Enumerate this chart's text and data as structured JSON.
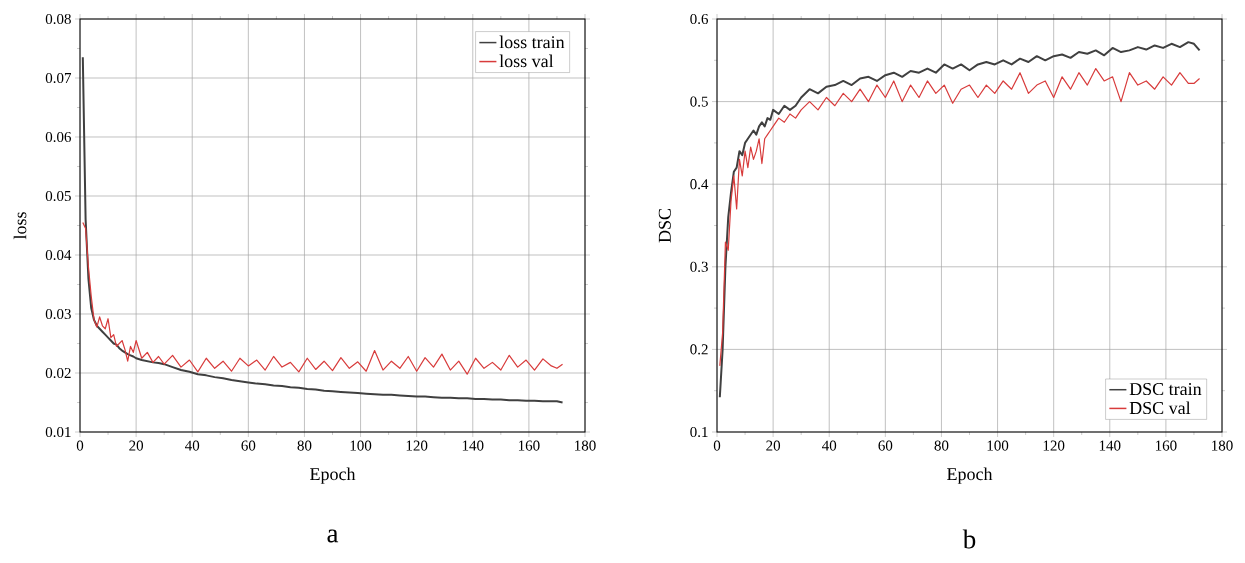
{
  "chart_data": [
    {
      "type": "line",
      "title": "a",
      "xlabel": "Epoch",
      "ylabel": "loss",
      "grid": true,
      "legend": "top right",
      "x": [
        1,
        2,
        3,
        4,
        5,
        6,
        7,
        8,
        9,
        10,
        11,
        12,
        13,
        14,
        15,
        16,
        17,
        18,
        19,
        20,
        22,
        24,
        26,
        28,
        30,
        33,
        36,
        39,
        42,
        45,
        48,
        51,
        54,
        57,
        60,
        63,
        66,
        69,
        72,
        75,
        78,
        81,
        84,
        87,
        90,
        93,
        96,
        99,
        102,
        105,
        108,
        111,
        114,
        117,
        120,
        123,
        126,
        129,
        132,
        135,
        138,
        141,
        144,
        147,
        150,
        153,
        156,
        159,
        162,
        165,
        168,
        170,
        172
      ],
      "series": [
        {
          "name": "loss train",
          "color": "#404040",
          "values": [
            0.0735,
            0.046,
            0.036,
            0.031,
            0.029,
            0.028,
            0.0275,
            0.027,
            0.0265,
            0.026,
            0.0255,
            0.025,
            0.0248,
            0.0242,
            0.0238,
            0.0235,
            0.0232,
            0.023,
            0.0228,
            0.0225,
            0.0222,
            0.022,
            0.0218,
            0.0217,
            0.0215,
            0.021,
            0.0205,
            0.0202,
            0.0198,
            0.0196,
            0.0193,
            0.0191,
            0.0188,
            0.0186,
            0.0184,
            0.0182,
            0.0181,
            0.0179,
            0.0178,
            0.0176,
            0.0175,
            0.0173,
            0.0172,
            0.017,
            0.0169,
            0.0168,
            0.0167,
            0.0166,
            0.0165,
            0.0164,
            0.0163,
            0.0163,
            0.0162,
            0.0161,
            0.016,
            0.016,
            0.0159,
            0.0158,
            0.0158,
            0.0157,
            0.0157,
            0.0156,
            0.0156,
            0.0155,
            0.0155,
            0.0154,
            0.0154,
            0.0153,
            0.0153,
            0.0152,
            0.0152,
            0.0152,
            0.015
          ]
        },
        {
          "name": "loss val",
          "color": "#d83b3b",
          "values": [
            0.0455,
            0.0445,
            0.038,
            0.033,
            0.029,
            0.0278,
            0.0295,
            0.028,
            0.0275,
            0.0292,
            0.026,
            0.0265,
            0.0245,
            0.025,
            0.0255,
            0.024,
            0.022,
            0.0245,
            0.0235,
            0.0255,
            0.0225,
            0.0235,
            0.0218,
            0.0228,
            0.0215,
            0.023,
            0.021,
            0.0222,
            0.0202,
            0.0225,
            0.0208,
            0.022,
            0.0203,
            0.0225,
            0.0212,
            0.0222,
            0.0205,
            0.0228,
            0.021,
            0.0218,
            0.0202,
            0.0225,
            0.0206,
            0.022,
            0.0204,
            0.0226,
            0.0208,
            0.0219,
            0.0203,
            0.0238,
            0.0205,
            0.022,
            0.0208,
            0.0228,
            0.0203,
            0.0226,
            0.021,
            0.0232,
            0.0205,
            0.022,
            0.0198,
            0.0225,
            0.0208,
            0.0218,
            0.0205,
            0.023,
            0.021,
            0.0222,
            0.0205,
            0.0224,
            0.0212,
            0.0208,
            0.0215
          ]
        }
      ],
      "xlim": [
        0,
        180
      ],
      "ylim": [
        0.01,
        0.08
      ],
      "xticks": [
        0,
        {
          "value": 10,
          "label": null
        },
        20,
        {
          "value": 30,
          "label": null
        },
        40,
        {
          "value": 50,
          "label": null
        },
        60,
        {
          "value": 70,
          "label": null
        },
        80,
        {
          "value": 90,
          "label": null
        },
        100,
        {
          "value": 110,
          "label": null
        },
        120,
        {
          "value": 130,
          "label": null
        },
        140,
        {
          "value": 150,
          "label": null
        },
        160,
        {
          "value": 170,
          "label": null
        },
        180
      ],
      "yticks": [
        0.01,
        {
          "value": 0.015,
          "label": null
        },
        0.02,
        {
          "value": 0.025,
          "label": null
        },
        0.03,
        {
          "value": 0.035,
          "label": null
        },
        0.04,
        {
          "value": 0.045,
          "label": null
        },
        0.05,
        {
          "value": 0.055,
          "label": null
        },
        0.06,
        {
          "value": 0.065,
          "label": null
        },
        0.07,
        {
          "value": 0.075,
          "label": null
        },
        0.08
      ]
    },
    {
      "type": "line",
      "title": "b",
      "xlabel": "Epoch",
      "ylabel": "DSC",
      "grid": true,
      "legend": "bottom right",
      "x": [
        1,
        2,
        3,
        4,
        5,
        6,
        7,
        8,
        9,
        10,
        11,
        12,
        13,
        14,
        15,
        16,
        17,
        18,
        19,
        20,
        22,
        24,
        26,
        28,
        30,
        33,
        36,
        39,
        42,
        45,
        48,
        51,
        54,
        57,
        60,
        63,
        66,
        69,
        72,
        75,
        78,
        81,
        84,
        87,
        90,
        93,
        96,
        99,
        102,
        105,
        108,
        111,
        114,
        117,
        120,
        123,
        126,
        129,
        132,
        135,
        138,
        141,
        144,
        147,
        150,
        153,
        156,
        159,
        162,
        165,
        168,
        170,
        172
      ],
      "series": [
        {
          "name": "DSC train",
          "color": "#404040",
          "values": [
            0.142,
            0.2,
            0.3,
            0.36,
            0.39,
            0.415,
            0.42,
            0.44,
            0.435,
            0.45,
            0.455,
            0.46,
            0.465,
            0.46,
            0.47,
            0.475,
            0.47,
            0.48,
            0.478,
            0.49,
            0.485,
            0.495,
            0.49,
            0.495,
            0.505,
            0.515,
            0.51,
            0.518,
            0.52,
            0.525,
            0.52,
            0.528,
            0.53,
            0.525,
            0.532,
            0.535,
            0.53,
            0.537,
            0.535,
            0.54,
            0.535,
            0.545,
            0.54,
            0.545,
            0.538,
            0.545,
            0.548,
            0.545,
            0.55,
            0.545,
            0.552,
            0.548,
            0.555,
            0.55,
            0.555,
            0.557,
            0.553,
            0.56,
            0.558,
            0.562,
            0.556,
            0.565,
            0.56,
            0.562,
            0.566,
            0.563,
            0.568,
            0.565,
            0.57,
            0.566,
            0.572,
            0.57,
            0.562
          ]
        },
        {
          "name": "DSC val",
          "color": "#d83b3b",
          "values": [
            0.18,
            0.22,
            0.33,
            0.32,
            0.38,
            0.41,
            0.37,
            0.43,
            0.41,
            0.44,
            0.42,
            0.445,
            0.43,
            0.44,
            0.455,
            0.425,
            0.455,
            0.46,
            0.465,
            0.47,
            0.48,
            0.475,
            0.485,
            0.48,
            0.49,
            0.5,
            0.49,
            0.505,
            0.495,
            0.51,
            0.5,
            0.515,
            0.5,
            0.52,
            0.505,
            0.525,
            0.5,
            0.52,
            0.505,
            0.525,
            0.51,
            0.52,
            0.498,
            0.515,
            0.52,
            0.505,
            0.52,
            0.51,
            0.525,
            0.515,
            0.535,
            0.51,
            0.52,
            0.525,
            0.505,
            0.53,
            0.515,
            0.535,
            0.52,
            0.54,
            0.525,
            0.53,
            0.5,
            0.535,
            0.52,
            0.525,
            0.515,
            0.53,
            0.52,
            0.535,
            0.522,
            0.522,
            0.528
          ]
        }
      ],
      "xlim": [
        0,
        180
      ],
      "ylim": [
        0.1,
        0.6
      ],
      "xticks": [
        0,
        {
          "value": 10,
          "label": null
        },
        20,
        {
          "value": 30,
          "label": null
        },
        40,
        {
          "value": 50,
          "label": null
        },
        60,
        {
          "value": 70,
          "label": null
        },
        80,
        {
          "value": 90,
          "label": null
        },
        100,
        {
          "value": 110,
          "label": null
        },
        120,
        {
          "value": 130,
          "label": null
        },
        140,
        {
          "value": 150,
          "label": null
        },
        160,
        {
          "value": 170,
          "label": null
        },
        180
      ],
      "yticks": [
        0.1,
        {
          "value": 0.15,
          "label": null
        },
        0.2,
        {
          "value": 0.25,
          "label": null
        },
        0.3,
        {
          "value": 0.35,
          "label": null
        },
        0.4,
        {
          "value": 0.45,
          "label": null
        },
        0.5,
        {
          "value": 0.55,
          "label": null
        },
        0.6
      ]
    }
  ]
}
